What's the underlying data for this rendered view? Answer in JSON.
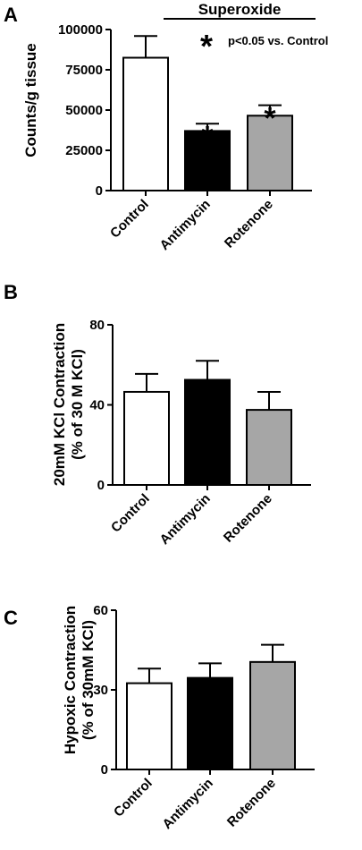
{
  "chart_data": [
    {
      "panel": "A",
      "type": "bar",
      "categories": [
        "Control",
        "Antimycin",
        "Rotenone"
      ],
      "values": [
        82500,
        37000,
        46500
      ],
      "errors": [
        13500,
        4500,
        6500
      ],
      "colors": [
        "#ffffff",
        "#000000",
        "#a6a6a6"
      ],
      "significant": [
        false,
        true,
        true
      ],
      "ylabel": "Counts/g tissue",
      "ylim": [
        0,
        100000
      ],
      "yticks": [
        "0",
        "25000",
        "50000",
        "75000",
        "100000"
      ],
      "ytick_values": [
        0,
        25000,
        50000,
        75000,
        100000
      ],
      "group_label": "Superoxide",
      "legend_star": "*",
      "legend_text": "p<0.05 vs. Control",
      "grid": false
    },
    {
      "panel": "B",
      "type": "bar",
      "categories": [
        "Control",
        "Antimycin",
        "Rotenone"
      ],
      "values": [
        46.5,
        52.5,
        37.5
      ],
      "errors": [
        9,
        9.5,
        9
      ],
      "colors": [
        "#ffffff",
        "#000000",
        "#a6a6a6"
      ],
      "ylabel_lines": [
        "20mM KCl Contraction",
        "(% of 30 M KCl)"
      ],
      "ylim": [
        0,
        80
      ],
      "yticks": [
        "0",
        "40",
        "80"
      ],
      "ytick_values": [
        0,
        40,
        80
      ],
      "grid": false
    },
    {
      "panel": "C",
      "type": "bar",
      "categories": [
        "Control",
        "Antimycin",
        "Rotenone"
      ],
      "values": [
        32.5,
        34.5,
        40.5
      ],
      "errors": [
        5.5,
        5.5,
        6.5
      ],
      "colors": [
        "#ffffff",
        "#000000",
        "#a6a6a6"
      ],
      "ylabel_lines": [
        "Hypoxic Contraction",
        "(% of 30mM KCl)"
      ],
      "ylim": [
        0,
        60
      ],
      "yticks": [
        "0",
        "30",
        "60"
      ],
      "ytick_values": [
        0,
        30,
        60
      ],
      "grid": false
    }
  ]
}
